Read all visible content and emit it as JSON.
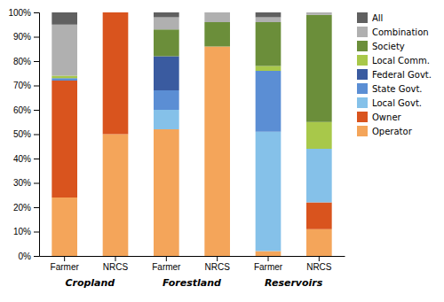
{
  "chart_data": {
    "type": "bar",
    "stacked": true,
    "grid": false,
    "legend": "right",
    "categories": [
      "Farmer",
      "NRCS",
      "Farmer",
      "NRCS",
      "Farmer",
      "NRCS"
    ],
    "annotations": [
      "Cropland",
      "Forestland",
      "Reservoirs"
    ],
    "series": [
      {
        "name": "Operator",
        "color": "#f4a55a",
        "values": [
          24,
          50,
          52,
          86,
          2,
          11
        ]
      },
      {
        "name": "Owner",
        "color": "#d9541e",
        "values": [
          48,
          50,
          0,
          0,
          0,
          11
        ]
      },
      {
        "name": "Local Govt.",
        "color": "#85c1e9",
        "values": [
          0,
          0,
          8,
          0,
          49,
          22
        ]
      },
      {
        "name": "State Govt.",
        "color": "#5b8ed4",
        "values": [
          1,
          0,
          8,
          0,
          25,
          0
        ]
      },
      {
        "name": "Federal Govt.",
        "color": "#3a5ba0",
        "values": [
          0,
          0,
          14,
          0,
          0,
          0
        ]
      },
      {
        "name": "Local Comm.",
        "color": "#a8c84a",
        "values": [
          1,
          0,
          0,
          0,
          2,
          11
        ]
      },
      {
        "name": "Society",
        "color": "#6b8e3a",
        "values": [
          0,
          0,
          11,
          10,
          18,
          44
        ]
      },
      {
        "name": "Combination",
        "color": "#b0b0b0",
        "values": [
          21,
          0,
          5,
          4,
          2,
          1
        ]
      },
      {
        "name": "All",
        "color": "#606060",
        "values": [
          5,
          0,
          2,
          0,
          2,
          0
        ]
      }
    ],
    "ylim": [
      0,
      100
    ],
    "yticks": [
      {
        "value": 0,
        "label": "0%"
      },
      {
        "value": 10,
        "label": "10%"
      },
      {
        "value": 20,
        "label": "20%"
      },
      {
        "value": 30,
        "label": "30%"
      },
      {
        "value": 40,
        "label": "40%"
      },
      {
        "value": 50,
        "label": "50%"
      },
      {
        "value": 60,
        "label": "60%"
      },
      {
        "value": 70,
        "label": "70%"
      },
      {
        "value": 80,
        "label": "80%"
      },
      {
        "value": 90,
        "label": "90%"
      },
      {
        "value": 100,
        "label": "100%"
      }
    ]
  }
}
